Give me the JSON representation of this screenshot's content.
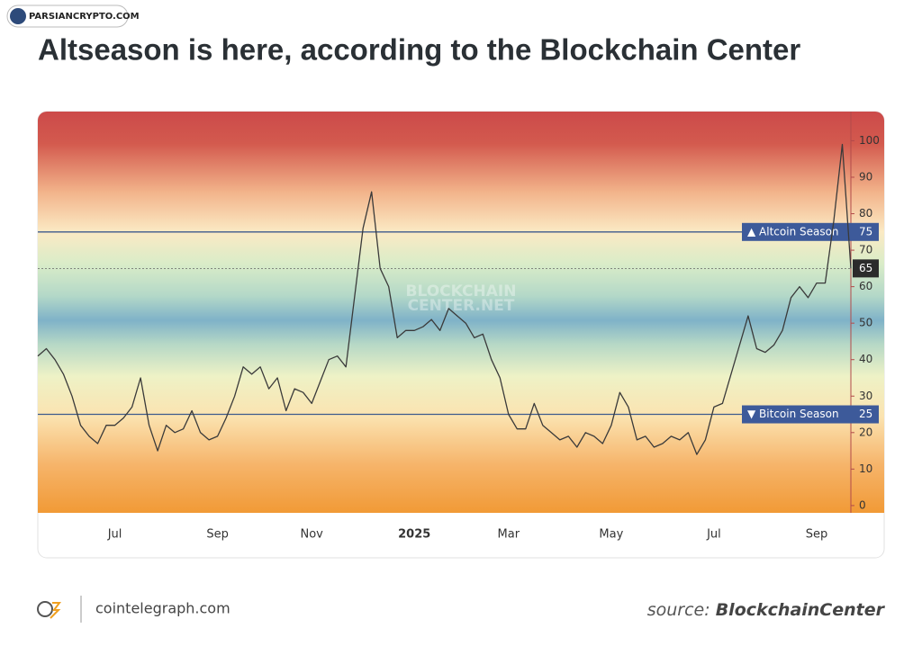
{
  "chart_data": {
    "type": "line",
    "badge": "PARSIANCRYPTO.COM",
    "title": "Altseason is here, according to the Blockchain Center",
    "watermark": [
      "BLOCKCHAIN",
      "CENTER.NET"
    ],
    "categories": [
      null,
      null,
      null,
      null,
      null,
      null,
      null,
      null,
      null,
      "Jul",
      null,
      null,
      null,
      null,
      null,
      null,
      null,
      null,
      null,
      null,
      null,
      "Sep",
      null,
      null,
      null,
      null,
      null,
      null,
      null,
      null,
      null,
      null,
      "Nov",
      null,
      null,
      null,
      null,
      null,
      null,
      null,
      null,
      null,
      null,
      null,
      "2025",
      null,
      null,
      null,
      null,
      null,
      null,
      null,
      null,
      null,
      null,
      "Mar",
      null,
      null,
      null,
      null,
      null,
      null,
      null,
      null,
      null,
      null,
      null,
      "May",
      null,
      null,
      null,
      null,
      null,
      null,
      null,
      null,
      null,
      null,
      null,
      "Jul",
      null,
      null,
      null,
      null,
      null,
      null,
      null,
      null,
      null,
      null,
      null,
      "Sep",
      null,
      null,
      null,
      null
    ],
    "values": [
      41,
      43,
      40,
      36,
      30,
      22,
      19,
      17,
      22,
      22,
      24,
      27,
      35,
      22,
      15,
      22,
      20,
      21,
      26,
      20,
      18,
      19,
      24,
      30,
      38,
      36,
      38,
      32,
      35,
      26,
      32,
      31,
      28,
      34,
      40,
      41,
      38,
      57,
      76,
      86,
      65,
      60,
      46,
      48,
      48,
      49,
      51,
      48,
      54,
      52,
      50,
      46,
      47,
      40,
      35,
      25,
      21,
      21,
      28,
      22,
      20,
      18,
      19,
      16,
      20,
      19,
      17,
      22,
      31,
      27,
      18,
      19,
      16,
      17,
      19,
      18,
      20,
      14,
      18,
      27,
      28,
      36,
      44,
      52,
      43,
      42,
      44,
      48,
      57,
      60,
      57,
      61,
      61,
      78,
      99,
      65
    ],
    "color": "#3a3a3a",
    "ylim": [
      -2,
      108
    ],
    "yticks": [
      0,
      10,
      20,
      30,
      40,
      50,
      60,
      70,
      80,
      90,
      100
    ],
    "annotations": [
      {
        "label": "▲ Altcoin Season",
        "value": 75
      },
      {
        "label": "▼ Bitcoin Season",
        "value": 25
      }
    ],
    "footer": {
      "site": "cointelegraph.com",
      "source_prefix": "source:",
      "source": "BlockchainCenter"
    }
  }
}
